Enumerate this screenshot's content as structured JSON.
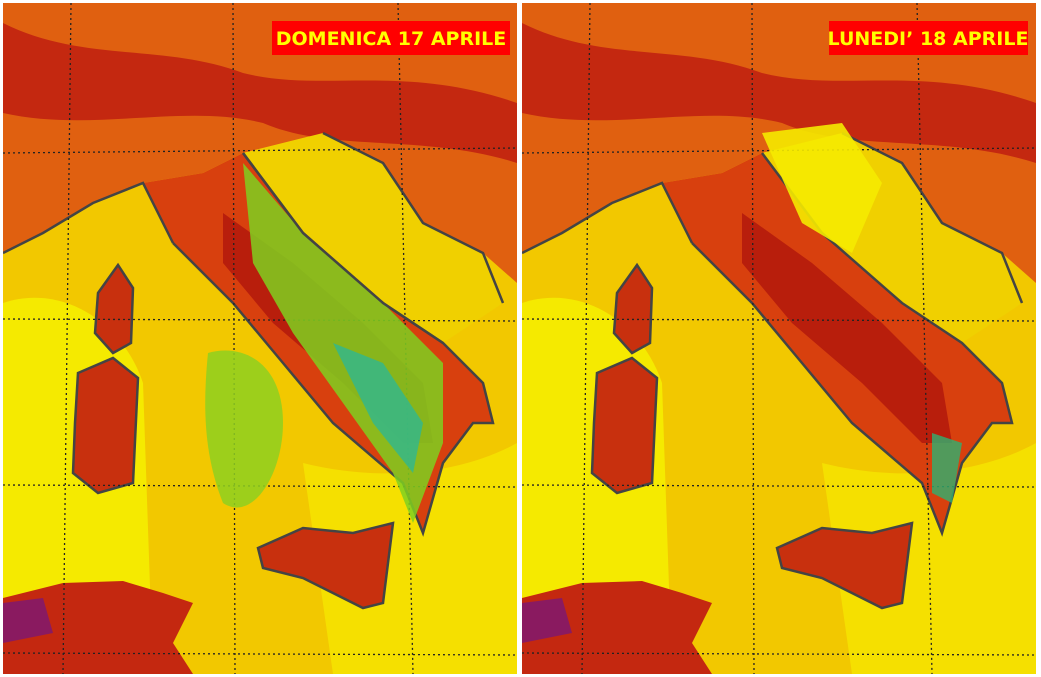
{
  "panels": [
    {
      "label": "DOMENICA 17 APRILE"
    },
    {
      "label": "LUNEDI’ 18 APRILE"
    }
  ]
}
